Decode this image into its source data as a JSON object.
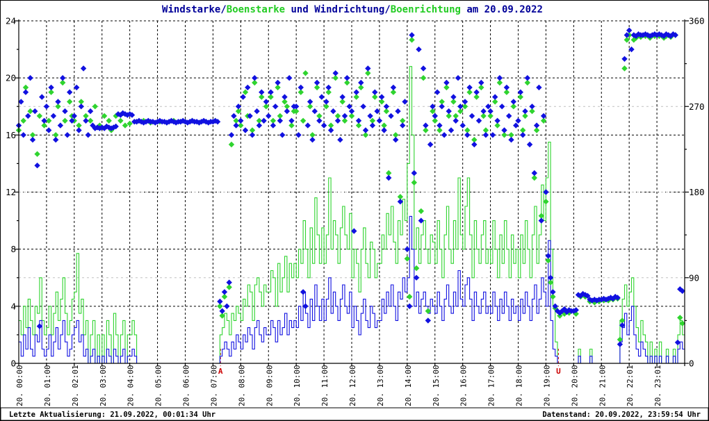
{
  "status_bar": {
    "left": "Letzte Aktualisierung: 21.09.2022, 00:01:34 Uhr",
    "right": "Datenstand: 20.09.2022, 23:59:54 Uhr"
  },
  "colors": {
    "wind_blue": "#1111e0",
    "gust_green": "#2fd42f",
    "title_blue": "#000099",
    "title_green": "#22cc22",
    "grid_major": "#000000",
    "grid_minor": "#c0c0c0",
    "sun_red": "#cc0000",
    "background": "#ffffff"
  },
  "chart_data": {
    "type": "line+scatter",
    "title_segments": [
      {
        "text": "Windstarke/",
        "color": "#000099"
      },
      {
        "text": "Boenstarke",
        "color": "#22cc22"
      },
      {
        "text": " und Windrichtung/",
        "color": "#000099"
      },
      {
        "text": "Boenrichtung",
        "color": "#22cc22"
      },
      {
        "text": " am 20.09.2022",
        "color": "#000099"
      }
    ],
    "y_left": {
      "min": 0,
      "max": 24,
      "major_step": 4,
      "minor_step": 2,
      "labels": [
        "0",
        "4",
        "8",
        "12",
        "16",
        "20",
        "24"
      ],
      "grid": "dashed-black"
    },
    "y_right": {
      "min": 0,
      "max": 360,
      "major_step": 90,
      "minor_step": 45,
      "labels": [
        "0",
        "90",
        "180",
        "270",
        "360"
      ],
      "grid": "dashed-gray"
    },
    "x_axis": {
      "hours": 24,
      "labels": [
        "20. 00:00",
        "20. 01:00",
        "20. 02:01",
        "20. 03:00",
        "20. 04:00",
        "20. 05:00",
        "20. 06:00",
        "20. 07:00",
        "20. 08:00",
        "20. 09:00",
        "20. 10:00",
        "20. 11:00",
        "20. 12:00",
        "20. 13:00",
        "20. 14:00",
        "20. 15:00",
        "20. 16:00",
        "20. 17:00",
        "20. 18:00",
        "20. 19:00",
        "20. 20:00",
        "20. 21:00",
        "20. 22:01",
        "20. 23:01"
      ],
      "grid": "dashed-black-hourly"
    },
    "sun_markers": [
      {
        "label": "A",
        "time_hours": 7.27
      },
      {
        "label": "U",
        "time_hours": 19.45
      }
    ],
    "interval_minutes": 5,
    "series": {
      "wind_speed": {
        "name": "Windstarke",
        "style": "step-line",
        "color": "#1111e0",
        "axis": "left",
        "values": [
          1.5,
          0.5,
          2,
          1,
          2.5,
          1,
          0.5,
          2,
          1.5,
          3,
          1,
          0.5,
          1,
          2,
          0.5,
          1.5,
          2.5,
          1,
          2,
          3,
          1.5,
          0.5,
          1,
          2,
          2.5,
          3,
          1.5,
          2,
          0.5,
          1,
          0,
          0.5,
          1,
          0,
          0.5,
          0,
          0.5,
          0,
          1,
          0.5,
          0,
          1,
          0.5,
          0,
          0.5,
          1,
          0,
          0.5,
          0.5,
          1,
          0.5,
          0,
          0,
          0,
          0,
          0,
          0,
          0,
          0,
          0,
          0,
          0,
          0,
          0,
          0,
          0,
          0,
          0,
          0,
          0,
          0,
          0,
          0,
          0,
          0,
          0,
          0,
          0,
          0,
          0,
          0,
          0,
          0,
          0,
          0,
          0,
          0,
          0.5,
          1,
          1.5,
          1,
          0.5,
          1.5,
          1,
          2,
          1.5,
          1,
          2,
          1.5,
          2.5,
          2,
          1,
          2.5,
          3,
          2,
          1.5,
          2.5,
          2,
          2,
          3,
          2.5,
          1.5,
          3,
          2,
          2.5,
          3.5,
          2,
          3,
          2.5,
          3,
          2.5,
          4,
          3,
          5,
          3.5,
          2.5,
          4.5,
          3,
          5.5,
          4,
          3,
          4.5,
          3,
          4.5,
          6,
          3.5,
          5,
          4,
          3,
          4.5,
          5.5,
          4,
          3.5,
          5,
          2.5,
          4,
          3,
          2,
          3.5,
          4.5,
          3,
          2.5,
          4,
          3.5,
          2.5,
          3,
          3,
          4.5,
          3.5,
          5,
          4,
          5.5,
          4,
          3,
          5,
          4.5,
          6,
          5,
          6,
          10.3,
          8,
          4,
          5,
          3.5,
          4.5,
          5,
          4,
          3.5,
          4.5,
          4,
          3.5,
          5,
          4,
          3,
          4.5,
          5.5,
          4,
          3.5,
          5,
          4,
          6.5,
          4.5,
          4,
          5.5,
          6,
          4.5,
          3,
          5,
          4,
          3.5,
          4.5,
          5,
          3.5,
          4,
          3.5,
          5,
          4,
          3,
          4.5,
          3.5,
          5,
          4,
          3,
          4.5,
          3.5,
          4,
          3,
          4.5,
          3.5,
          5,
          4,
          3,
          4.5,
          5.5,
          3.5,
          4.5,
          6,
          5,
          4,
          8.6,
          3,
          1,
          0.5,
          0,
          0,
          0,
          0,
          0,
          0,
          0,
          0,
          0,
          0.5,
          0,
          0,
          0,
          0,
          0.5,
          0,
          0,
          0,
          0,
          0,
          0,
          0,
          0,
          0,
          0,
          0,
          0,
          1.5,
          2.5,
          3.5,
          2,
          3,
          4,
          2,
          1,
          0.5,
          1.5,
          1,
          0.5,
          0,
          0.5,
          0,
          0.5,
          0,
          0.5,
          0,
          0,
          0.5,
          0,
          0,
          0.5,
          0,
          1,
          1.5,
          1
        ]
      },
      "gust_speed": {
        "name": "Boenstarke",
        "style": "step-line",
        "color": "#2fd42f",
        "axis": "left",
        "values": [
          3,
          2,
          4,
          2.5,
          4.5,
          3,
          2,
          4,
          3.5,
          6,
          3,
          2,
          2.5,
          4,
          2,
          3.5,
          5,
          3,
          4.5,
          6,
          3.5,
          2,
          3,
          4.5,
          5,
          7.7,
          3.5,
          4.5,
          2,
          3,
          0,
          2,
          3,
          0,
          2,
          0,
          2,
          0,
          3,
          2,
          0,
          3.5,
          2,
          0,
          2,
          3,
          0,
          2,
          2,
          3,
          2,
          0,
          0,
          0,
          0,
          0,
          0,
          0,
          0,
          0,
          0,
          0,
          0,
          0,
          0,
          0,
          0,
          0,
          0,
          0,
          0,
          0,
          0,
          0,
          0,
          0,
          0,
          0,
          0,
          0,
          0,
          0,
          0,
          0,
          0,
          0,
          0,
          2,
          2.5,
          3.5,
          3,
          2,
          3.5,
          3,
          4,
          3.5,
          3,
          4.5,
          4,
          5.5,
          5,
          3,
          5.5,
          6,
          5,
          4,
          5.5,
          5,
          5,
          6.5,
          6,
          4,
          7,
          5,
          6,
          7.5,
          5,
          7,
          6,
          7,
          6,
          8,
          7,
          10,
          8,
          6,
          9.5,
          7,
          11.6,
          9,
          7,
          9.5,
          7,
          9,
          13,
          8,
          10,
          9,
          7,
          9.5,
          11,
          9,
          8,
          10.5,
          6,
          8,
          7,
          5,
          8,
          9.5,
          7,
          6,
          8.5,
          8,
          6,
          7,
          7,
          9,
          8,
          10.5,
          9,
          11,
          8.5,
          7,
          10,
          9,
          11.5,
          10,
          14,
          20.8,
          16,
          8,
          9.5,
          7,
          9,
          10,
          8,
          7,
          9,
          8.5,
          7,
          10,
          8,
          6,
          9,
          11,
          8,
          7,
          10,
          8,
          13,
          9,
          8,
          11,
          13,
          9,
          6,
          10,
          8,
          7,
          9,
          10,
          7,
          8,
          7,
          10,
          8,
          6,
          9,
          7,
          10,
          8,
          6,
          9,
          7,
          8,
          6,
          9,
          7,
          10,
          8,
          6,
          9,
          11,
          7,
          9,
          12.5,
          10,
          13,
          15.5,
          8,
          4,
          1.5,
          0,
          0,
          0,
          0,
          0,
          0,
          0,
          0,
          0,
          1,
          0,
          0,
          0,
          0,
          1,
          0,
          0,
          0,
          0,
          0,
          0,
          0,
          0,
          0,
          0,
          0,
          0,
          3,
          4.5,
          5.5,
          4,
          5,
          6,
          4,
          2.5,
          1.5,
          3,
          2,
          1.5,
          0,
          1.5,
          0,
          1,
          0,
          1.5,
          0,
          0,
          1,
          0,
          0,
          1,
          0,
          2,
          3,
          2
        ]
      },
      "wind_dir": {
        "name": "Windrichtung",
        "style": "diamond-scatter",
        "color": "#1111e0",
        "axis": "right",
        "values": [
          250,
          275,
          240,
          285,
          260,
          300,
          235,
          265,
          208,
          39,
          280,
          255,
          270,
          245,
          290,
          260,
          235,
          275,
          250,
          300,
          265,
          240,
          285,
          255,
          260,
          290,
          245,
          270,
          310,
          255,
          240,
          265,
          250,
          247,
          248,
          247,
          248,
          247,
          249,
          248,
          247,
          248,
          249,
          262,
          261,
          263,
          262,
          261,
          262,
          261,
          254,
          254,
          255,
          254,
          253,
          254,
          255,
          254,
          254,
          253,
          254,
          255,
          254,
          254,
          253,
          254,
          255,
          254,
          253,
          254,
          254,
          255,
          254,
          253,
          254,
          255,
          254,
          254,
          253,
          254,
          255,
          254,
          253,
          254,
          254,
          255,
          254,
          65,
          55,
          75,
          60,
          85,
          240,
          260,
          250,
          270,
          255,
          280,
          245,
          290,
          260,
          240,
          300,
          265,
          250,
          285,
          255,
          275,
          260,
          285,
          250,
          270,
          295,
          255,
          240,
          280,
          265,
          300,
          255,
          270,
          270,
          240,
          290,
          75,
          60,
          250,
          275,
          235,
          265,
          295,
          255,
          280,
          250,
          275,
          290,
          245,
          265,
          305,
          255,
          235,
          280,
          260,
          300,
          270,
          265,
          139,
          285,
          255,
          295,
          270,
          245,
          310,
          260,
          250,
          285,
          265,
          255,
          280,
          245,
          270,
          195,
          260,
          290,
          235,
          265,
          170,
          250,
          275,
          120,
          60,
          345,
          200,
          90,
          330,
          150,
          310,
          250,
          45,
          230,
          270,
          260,
          285,
          250,
          270,
          240,
          295,
          265,
          245,
          280,
          255,
          300,
          270,
          250,
          275,
          240,
          290,
          260,
          230,
          285,
          255,
          295,
          265,
          240,
          270,
          265,
          240,
          280,
          255,
          300,
          270,
          245,
          290,
          260,
          235,
          275,
          250,
          255,
          285,
          240,
          265,
          300,
          230,
          270,
          200,
          250,
          290,
          150,
          260,
          180,
          113,
          90,
          75,
          60,
          55,
          53,
          55,
          57,
          54,
          56,
          55,
          55,
          56,
          72,
          71,
          73,
          72,
          71,
          67,
          66,
          67,
          66,
          67,
          67,
          68,
          67,
          68,
          69,
          68,
          70,
          69,
          20,
          40,
          320,
          345,
          350,
          330,
          345,
          344,
          346,
          345,
          345,
          346,
          345,
          344,
          345,
          346,
          345,
          346,
          345,
          344,
          346,
          345,
          344,
          346,
          345,
          22,
          78,
          76
        ]
      },
      "gust_dir": {
        "name": "Boenrichtung",
        "style": "diamond-scatter",
        "color": "#2fd42f",
        "axis": "right",
        "values": [
          245,
          null,
          255,
          290,
          null,
          265,
          240,
          null,
          220,
          260,
          null,
          250,
          null,
          255,
          285,
          null,
          240,
          270,
          null,
          295,
          255,
          null,
          275,
          260,
          255,
          null,
          250,
          275,
          null,
          260,
          null,
          255,
          null,
          270,
          null,
          250,
          null,
          260,
          null,
          255,
          245,
          null,
          260,
          null,
          255,
          null,
          250,
          null,
          252,
          null,
          null,
          254,
          null,
          null,
          255,
          null,
          null,
          253,
          null,
          null,
          null,
          254,
          null,
          null,
          253,
          null,
          null,
          255,
          null,
          null,
          254,
          null,
          254,
          null,
          null,
          255,
          null,
          null,
          253,
          null,
          null,
          254,
          null,
          null,
          null,
          255,
          null,
          60,
          50,
          70,
          null,
          80,
          230,
          null,
          255,
          265,
          250,
          null,
          285,
          260,
          null,
          245,
          295,
          null,
          255,
          280,
          null,
          270,
          null,
          280,
          255,
          null,
          290,
          260,
          null,
          275,
          270,
          null,
          250,
          265,
          265,
          null,
          285,
          255,
          305,
          null,
          270,
          240,
          null,
          290,
          260,
          null,
          null,
          270,
          285,
          250,
          null,
          300,
          260,
          null,
          275,
          255,
          295,
          null,
          260,
          null,
          280,
          250,
          290,
          null,
          240,
          305,
          null,
          255,
          280,
          null,
          null,
          275,
          250,
          265,
          200,
          null,
          285,
          240,
          null,
          175,
          255,
          null,
          110,
          70,
          340,
          190,
          100,
          null,
          160,
          300,
          245,
          55,
          null,
          265,
          255,
          null,
          245,
          275,
          null,
          290,
          260,
          null,
          275,
          260,
          null,
          265,
          null,
          270,
          245,
          285,
          null,
          235,
          280,
          null,
          290,
          260,
          245,
          null,
          260,
          null,
          275,
          250,
          295,
          null,
          240,
          285,
          null,
          240,
          270,
          null,
          null,
          280,
          245,
          260,
          295,
          null,
          265,
          195,
          245,
          null,
          155,
          255,
          170,
          108,
          85,
          70,
          58,
          null,
          50,
          null,
          52,
          null,
          53,
          null,
          null,
          52,
          null,
          70,
          null,
          70,
          null,
          65,
          null,
          64,
          null,
          65,
          null,
          66,
          null,
          66,
          null,
          67,
          null,
          68,
          25,
          45,
          310,
          340,
          345,
          null,
          340,
          342,
          null,
          343,
          null,
          344,
          null,
          342,
          null,
          344,
          null,
          344,
          null,
          342,
          344,
          null,
          343,
          null,
          345,
          null,
          48,
          42
        ]
      }
    }
  }
}
